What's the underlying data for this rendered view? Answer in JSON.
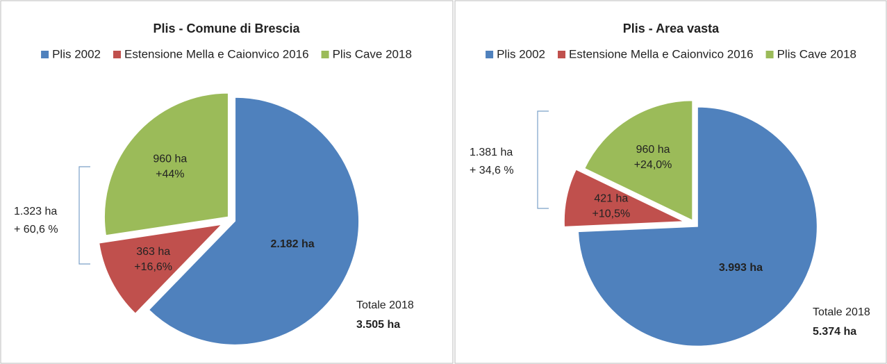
{
  "chart_data": [
    {
      "type": "pie",
      "title": "Plis - Comune di Brescia",
      "categories": [
        "Plis 2002",
        "Estensione Mella e Caionvico 2016",
        "Plis Cave 2018"
      ],
      "values": [
        2182,
        363,
        960
      ],
      "value_labels": [
        "2.182 ha",
        "363 ha",
        "960 ha"
      ],
      "share_labels": [
        null,
        "+16,6%",
        "+44%"
      ],
      "colors": [
        "#4f81bd",
        "#c0504d",
        "#9bbb59"
      ],
      "bracket_labels": [
        "1.323 ha",
        "+ 60,6 %"
      ],
      "total_label": "Totale 2018",
      "total_value_label": "3.505 ha"
    },
    {
      "type": "pie",
      "title": "Plis - Area vasta",
      "categories": [
        "Plis 2002",
        "Estensione Mella e Caionvico 2016",
        "Plis Cave 2018"
      ],
      "values": [
        3993,
        421,
        960
      ],
      "value_labels": [
        "3.993 ha",
        "421 ha",
        "960 ha"
      ],
      "share_labels": [
        null,
        "+10,5%",
        "+24,0%"
      ],
      "colors": [
        "#4f81bd",
        "#c0504d",
        "#9bbb59"
      ],
      "bracket_labels": [
        "1.381 ha",
        "+ 34,6 %"
      ],
      "total_label": "Totale 2018",
      "total_value_label": "5.374 ha"
    }
  ]
}
